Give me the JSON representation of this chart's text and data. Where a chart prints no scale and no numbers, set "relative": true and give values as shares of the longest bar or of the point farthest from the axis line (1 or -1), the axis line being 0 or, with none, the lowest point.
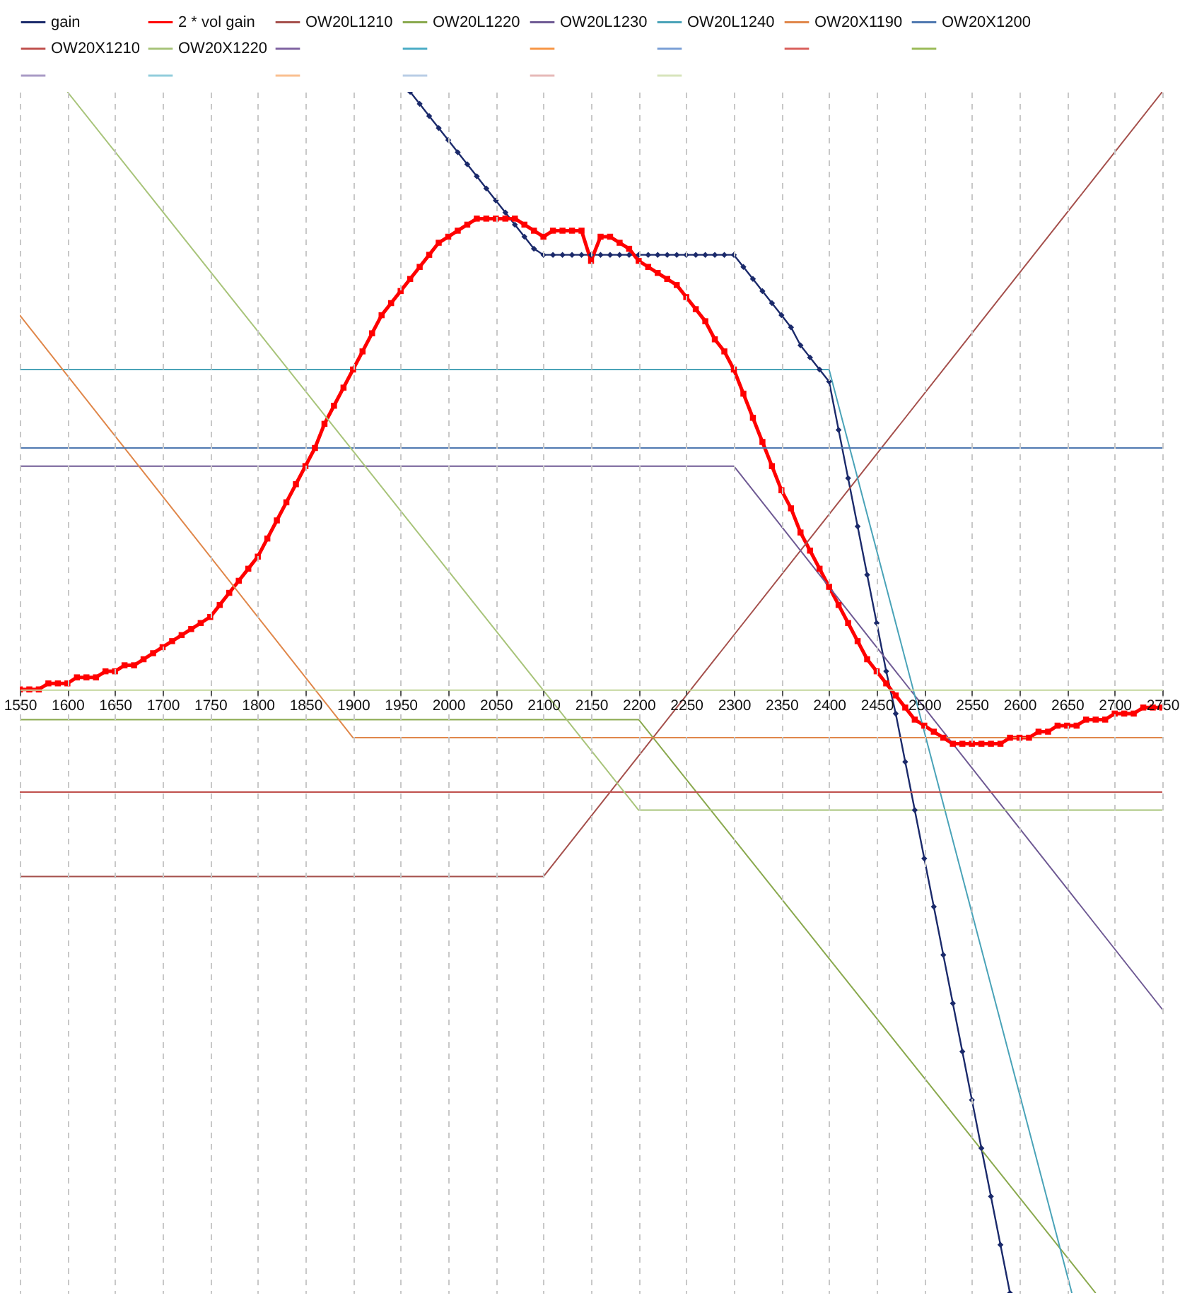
{
  "chart_data": {
    "type": "line",
    "relative": true,
    "grid": "x",
    "legend": "top",
    "xlim": [
      1550,
      2750
    ],
    "xticks": [
      1550,
      1600,
      1650,
      1700,
      1750,
      1800,
      1850,
      1900,
      1950,
      2000,
      2050,
      2100,
      2150,
      2200,
      2250,
      2300,
      2350,
      2400,
      2450,
      2500,
      2550,
      2600,
      2650,
      2700,
      2750
    ],
    "series": [
      {
        "name": "gain",
        "color": "#1b2a6b",
        "marker": "diamond",
        "x": [
          1960,
          1970,
          1980,
          1990,
          2000,
          2010,
          2020,
          2030,
          2040,
          2050,
          2060,
          2070,
          2080,
          2090,
          2100,
          2110,
          2120,
          2130,
          2140,
          2150,
          2160,
          2170,
          2180,
          2190,
          2200,
          2210,
          2220,
          2230,
          2240,
          2250,
          2260,
          2270,
          2280,
          2290,
          2300,
          2310,
          2320,
          2330,
          2340,
          2350,
          2360,
          2370,
          2380,
          2390,
          2400,
          2410,
          2420,
          2430,
          2440,
          2450,
          2460,
          2470,
          2480,
          2490,
          2500,
          2510,
          2520,
          2530,
          2540,
          2550,
          2560,
          2570,
          2580,
          2590
        ],
        "values": [
          0.99,
          0.97,
          0.95,
          0.93,
          0.91,
          0.89,
          0.87,
          0.85,
          0.83,
          0.81,
          0.79,
          0.77,
          0.75,
          0.73,
          0.72,
          0.72,
          0.72,
          0.72,
          0.72,
          0.72,
          0.72,
          0.72,
          0.72,
          0.72,
          0.72,
          0.72,
          0.72,
          0.72,
          0.72,
          0.72,
          0.72,
          0.72,
          0.72,
          0.72,
          0.72,
          0.7,
          0.68,
          0.66,
          0.64,
          0.62,
          0.6,
          0.57,
          0.55,
          0.53,
          0.51,
          0.43,
          0.35,
          0.27,
          0.19,
          0.11,
          0.03,
          -0.04,
          -0.12,
          -0.2,
          -0.28,
          -0.36,
          -0.44,
          -0.52,
          -0.6,
          -0.68,
          -0.76,
          -0.84,
          -0.92,
          -1.0
        ]
      },
      {
        "name": "2 * vol gain",
        "color": "#ff0000",
        "marker": "square",
        "x": [
          1550,
          1560,
          1570,
          1580,
          1590,
          1600,
          1610,
          1620,
          1630,
          1640,
          1650,
          1660,
          1670,
          1680,
          1690,
          1700,
          1710,
          1720,
          1730,
          1740,
          1750,
          1760,
          1770,
          1780,
          1790,
          1800,
          1810,
          1820,
          1830,
          1840,
          1850,
          1860,
          1870,
          1880,
          1890,
          1900,
          1910,
          1920,
          1930,
          1940,
          1950,
          1960,
          1970,
          1980,
          1990,
          2000,
          2010,
          2020,
          2030,
          2040,
          2050,
          2060,
          2070,
          2080,
          2090,
          2100,
          2110,
          2120,
          2130,
          2140,
          2150,
          2160,
          2170,
          2180,
          2190,
          2200,
          2210,
          2220,
          2230,
          2240,
          2250,
          2260,
          2270,
          2280,
          2290,
          2300,
          2310,
          2320,
          2330,
          2340,
          2350,
          2360,
          2370,
          2380,
          2390,
          2400,
          2410,
          2420,
          2430,
          2440,
          2450,
          2460,
          2470,
          2480,
          2490,
          2500,
          2510,
          2520,
          2530,
          2540,
          2550,
          2560,
          2570,
          2580,
          2590,
          2600,
          2610,
          2620,
          2630,
          2640,
          2650,
          2660,
          2670,
          2680,
          2690,
          2700,
          2710,
          2720,
          2730,
          2740,
          2750
        ],
        "values": [
          0.0,
          0.0,
          0.0,
          0.01,
          0.01,
          0.01,
          0.02,
          0.02,
          0.02,
          0.03,
          0.03,
          0.04,
          0.04,
          0.05,
          0.06,
          0.07,
          0.08,
          0.09,
          0.1,
          0.11,
          0.12,
          0.14,
          0.16,
          0.18,
          0.2,
          0.22,
          0.25,
          0.28,
          0.31,
          0.34,
          0.37,
          0.4,
          0.44,
          0.47,
          0.5,
          0.53,
          0.56,
          0.59,
          0.62,
          0.64,
          0.66,
          0.68,
          0.7,
          0.72,
          0.74,
          0.75,
          0.76,
          0.77,
          0.78,
          0.78,
          0.78,
          0.78,
          0.78,
          0.77,
          0.76,
          0.75,
          0.76,
          0.76,
          0.76,
          0.76,
          0.71,
          0.75,
          0.75,
          0.74,
          0.73,
          0.71,
          0.7,
          0.69,
          0.68,
          0.67,
          0.65,
          0.63,
          0.61,
          0.58,
          0.56,
          0.53,
          0.49,
          0.45,
          0.41,
          0.37,
          0.33,
          0.3,
          0.26,
          0.23,
          0.2,
          0.17,
          0.14,
          0.11,
          0.08,
          0.05,
          0.03,
          0.01,
          -0.01,
          -0.03,
          -0.05,
          -0.06,
          -0.07,
          -0.08,
          -0.09,
          -0.09,
          -0.09,
          -0.09,
          -0.09,
          -0.09,
          -0.08,
          -0.08,
          -0.08,
          -0.07,
          -0.07,
          -0.06,
          -0.06,
          -0.06,
          -0.05,
          -0.05,
          -0.05,
          -0.04,
          -0.04,
          -0.04,
          -0.03,
          -0.03,
          -0.03
        ]
      },
      {
        "name": "OW20L1210",
        "color": "#a5504c",
        "x": [
          1550,
          2100,
          2750
        ],
        "values": [
          -0.31,
          -0.31,
          0.99
        ]
      },
      {
        "name": "OW20L1220",
        "color": "#8aa94e",
        "x": [
          1550,
          2200,
          2680
        ],
        "values": [
          -0.05,
          -0.05,
          -1.0
        ]
      },
      {
        "name": "OW20L1230",
        "color": "#6f5a94",
        "x": [
          1550,
          2300,
          2750
        ],
        "values": [
          0.37,
          0.37,
          -0.53
        ]
      },
      {
        "name": "OW20L1240",
        "color": "#4aa3b8",
        "x": [
          1550,
          2400,
          2655
        ],
        "values": [
          0.53,
          0.53,
          -1.0
        ]
      },
      {
        "name": "OW20X1190",
        "color": "#e0874a",
        "x": [
          1550,
          1900,
          2750
        ],
        "values": [
          0.62,
          -0.08,
          -0.08
        ]
      },
      {
        "name": "OW20X1200",
        "color": "#4f78b0",
        "x": [
          1550,
          2750
        ],
        "values": [
          0.4,
          0.4
        ]
      },
      {
        "name": "OW20X1210",
        "color": "#c0504d",
        "x": [
          1550,
          2750
        ],
        "values": [
          -0.17,
          -0.17
        ]
      },
      {
        "name": "OW20X1220",
        "color": "#a8c47a",
        "x": [
          1600,
          2200,
          2750
        ],
        "values": [
          0.99,
          -0.2,
          -0.2
        ]
      },
      {
        "color": "#8064a2"
      },
      {
        "color": "#4bacc6"
      },
      {
        "color": "#f79646"
      },
      {
        "color": "#7b9fd6"
      },
      {
        "color": "#d9605c"
      },
      {
        "color": "#9bbb59"
      },
      {
        "color": "#a99bc5"
      },
      {
        "color": "#92cddc"
      },
      {
        "color": "#fac090"
      },
      {
        "color": "#b9cde5"
      },
      {
        "color": "#e6b9b8"
      },
      {
        "color": "#d7e4bc"
      }
    ]
  }
}
